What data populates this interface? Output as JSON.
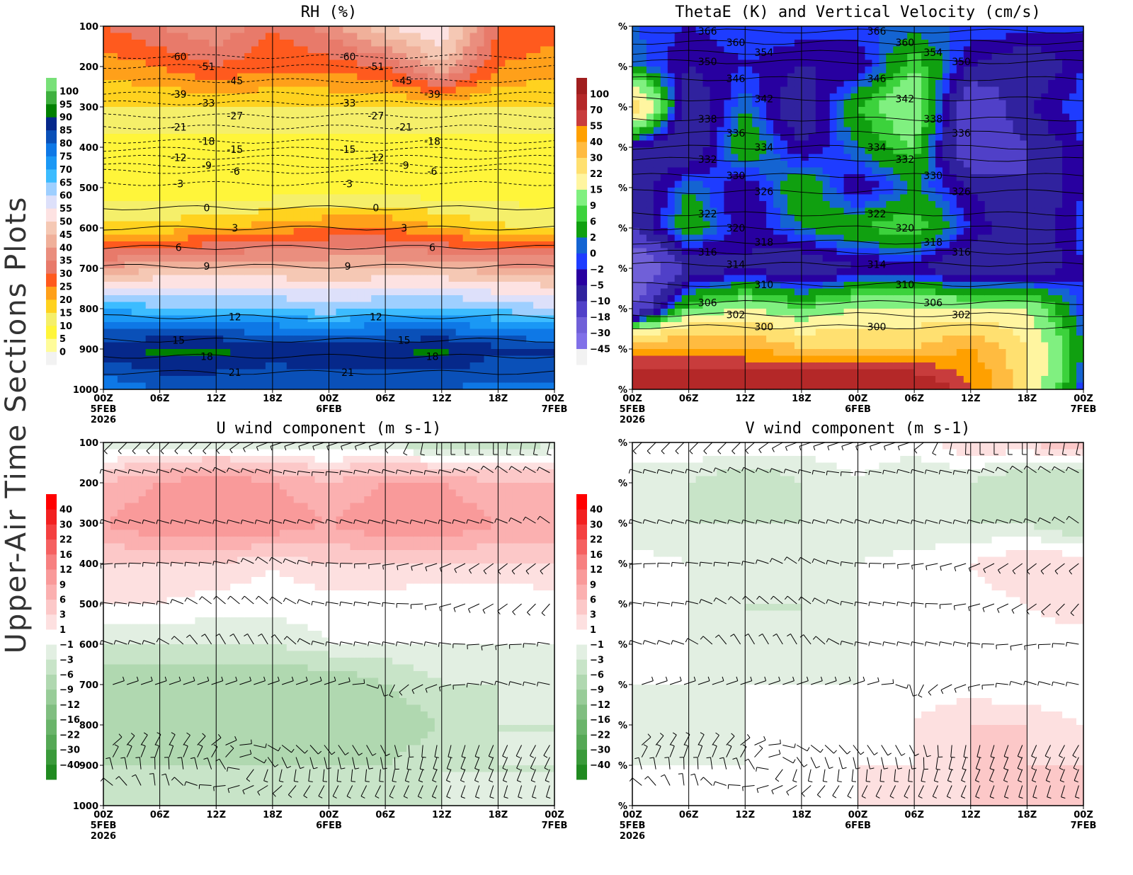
{
  "side_title": "Upper-Air Time Sections Plots",
  "time_axis": {
    "ticks_hours": [
      0,
      6,
      12,
      18,
      24,
      30,
      36,
      42,
      48
    ],
    "labels": [
      "00Z",
      "06Z",
      "12Z",
      "18Z",
      "00Z",
      "06Z",
      "12Z",
      "18Z",
      "00Z"
    ],
    "date_labels": [
      {
        "hour": 0,
        "text": "5FEB"
      },
      {
        "hour": 24,
        "text": "6FEB"
      },
      {
        "hour": 48,
        "text": "7FEB"
      }
    ],
    "year_label": "2026"
  },
  "chart_data": [
    {
      "id": "rh",
      "type": "heatmap",
      "title": "RH (%)",
      "y_axis": {
        "type": "pressure",
        "range": [
          100,
          1000
        ],
        "inverted": true,
        "ticks": [
          "100",
          "200",
          "300",
          "400",
          "500",
          "600",
          "700",
          "800",
          "900",
          "1000"
        ]
      },
      "x_range_hours": [
        0,
        48
      ],
      "grid_times_hours": [
        0,
        6,
        12,
        18,
        24,
        30,
        36,
        42,
        48
      ],
      "grid_pressures": [
        100,
        200,
        300,
        400,
        500,
        600,
        700,
        800,
        900,
        1000
      ],
      "values": [
        [
          30,
          35,
          40,
          30,
          38,
          50,
          55,
          30,
          28
        ],
        [
          22,
          25,
          30,
          26,
          27,
          30,
          45,
          25,
          22
        ],
        [
          15,
          15,
          15,
          15,
          15,
          15,
          15,
          15,
          15
        ],
        [
          8,
          8,
          8,
          8,
          8,
          8,
          8,
          8,
          8
        ],
        [
          6,
          6,
          6,
          6,
          6,
          6,
          6,
          6,
          6
        ],
        [
          16,
          17,
          20,
          22,
          25,
          25,
          20,
          16,
          15
        ],
        [
          40,
          45,
          45,
          45,
          45,
          45,
          45,
          42,
          42
        ],
        [
          70,
          66,
          66,
          66,
          62,
          66,
          66,
          64,
          60
        ],
        [
          88,
          92,
          92,
          88,
          90,
          90,
          92,
          86,
          86
        ],
        [
          76,
          80,
          80,
          80,
          80,
          80,
          80,
          78,
          78
        ]
      ],
      "colorbar": {
        "levels": [
          0,
          5,
          10,
          15,
          20,
          25,
          30,
          35,
          40,
          45,
          50,
          55,
          60,
          65,
          70,
          75,
          80,
          85,
          90,
          95,
          100
        ],
        "colors": [
          "#f2f2f2",
          "#fffc9a",
          "#fff53a",
          "#f5ef6a",
          "#ffd21f",
          "#ffa01a",
          "#ff5a1e",
          "#e87a6a",
          "#ea8e7e",
          "#f0b09a",
          "#f5c8b4",
          "#fde2e2",
          "#dde0fa",
          "#9ecfff",
          "#3cbcff",
          "#1a98f5",
          "#0e78e6",
          "#0a50b8",
          "#06288a",
          "#008000",
          "#3eb03e",
          "#78e078"
        ]
      },
      "contours": {
        "name": "temperature",
        "items": [
          {
            "value": "-60",
            "p": 175
          },
          {
            "value": "-51",
            "p": 200
          },
          {
            "value": "-45",
            "p": 235
          },
          {
            "value": "-39",
            "p": 268
          },
          {
            "value": "-33",
            "p": 290
          },
          {
            "value": "-27",
            "p": 322
          },
          {
            "value": "-21",
            "p": 350
          },
          {
            "value": "-18",
            "p": 385
          },
          {
            "value": "-15",
            "p": 405
          },
          {
            "value": "-12",
            "p": 425
          },
          {
            "value": "-9",
            "p": 445
          },
          {
            "value": "-6",
            "p": 460
          },
          {
            "value": "-3",
            "p": 490
          },
          {
            "value": "0",
            "p": 550
          },
          {
            "value": "3",
            "p": 600
          },
          {
            "value": "6",
            "p": 648
          },
          {
            "value": "9",
            "p": 695
          },
          {
            "value": "12",
            "p": 820
          },
          {
            "value": "15",
            "p": 878
          },
          {
            "value": "18",
            "p": 918
          },
          {
            "value": "21",
            "p": 958
          }
        ]
      }
    },
    {
      "id": "thetae",
      "type": "heatmap",
      "title": "ThetaE (K) and Vertical Velocity (cm/s)",
      "y_axis": {
        "type": "pressure",
        "range": [
          100,
          1000
        ],
        "inverted": true,
        "ticks": [
          "%",
          "%",
          "%",
          "%",
          "%",
          "%",
          "%",
          "%",
          "%",
          "%"
        ]
      },
      "x_range_hours": [
        0,
        48
      ],
      "grid_times_hours": [
        0,
        6,
        12,
        18,
        24,
        30,
        36,
        42,
        48
      ],
      "grid_pressures": [
        100,
        200,
        300,
        400,
        500,
        600,
        700,
        800,
        900,
        1000
      ],
      "values": [
        [
          0,
          -2,
          0,
          0,
          0,
          0,
          0,
          0,
          -2
        ],
        [
          2,
          -5,
          -2,
          -5,
          -5,
          9,
          -5,
          -10,
          -2
        ],
        [
          30,
          -10,
          2,
          -10,
          6,
          15,
          -18,
          -5,
          0
        ],
        [
          -5,
          -10,
          6,
          -5,
          2,
          9,
          -18,
          -10,
          -2
        ],
        [
          -10,
          2,
          -5,
          6,
          -5,
          2,
          -5,
          -10,
          -2
        ],
        [
          -10,
          6,
          -5,
          2,
          6,
          9,
          -2,
          -10,
          0
        ],
        [
          -30,
          -10,
          -5,
          -10,
          -5,
          -5,
          -10,
          -10,
          -2
        ],
        [
          -18,
          9,
          15,
          9,
          15,
          15,
          15,
          15,
          -2
        ],
        [
          40,
          40,
          40,
          30,
          30,
          30,
          40,
          22,
          2
        ],
        [
          100,
          100,
          100,
          100,
          100,
          100,
          55,
          22,
          -2
        ]
      ],
      "colorbar": {
        "levels": [
          -45,
          -30,
          -18,
          -10,
          -5,
          -2,
          0,
          2,
          6,
          9,
          15,
          22,
          30,
          40,
          55,
          70,
          100
        ],
        "colors": [
          "#f2f2f2",
          "#8070e8",
          "#7060d8",
          "#5040c8",
          "#30229e",
          "#2800a0",
          "#1e3cff",
          "#1464d2",
          "#10a010",
          "#3cd23c",
          "#80f080",
          "#fff5a0",
          "#ffe070",
          "#ffbb40",
          "#ffa000",
          "#c83c3c",
          "#b42828",
          "#a01e1e"
        ]
      },
      "contours": {
        "name": "thetae",
        "items": [
          {
            "value": "366",
            "p": 112
          },
          {
            "value": "360",
            "p": 140
          },
          {
            "value": "354",
            "p": 165
          },
          {
            "value": "350",
            "p": 188
          },
          {
            "value": "346",
            "p": 230
          },
          {
            "value": "342",
            "p": 280
          },
          {
            "value": "338",
            "p": 330
          },
          {
            "value": "336",
            "p": 365
          },
          {
            "value": "334",
            "p": 400
          },
          {
            "value": "332",
            "p": 430
          },
          {
            "value": "330",
            "p": 470
          },
          {
            "value": "326",
            "p": 510
          },
          {
            "value": "322",
            "p": 565
          },
          {
            "value": "320",
            "p": 600
          },
          {
            "value": "318",
            "p": 635
          },
          {
            "value": "316",
            "p": 660
          },
          {
            "value": "314",
            "p": 690
          },
          {
            "value": "310",
            "p": 740
          },
          {
            "value": "306",
            "p": 785
          },
          {
            "value": "302",
            "p": 815
          },
          {
            "value": "300",
            "p": 845
          }
        ]
      }
    },
    {
      "id": "u",
      "type": "heatmap",
      "title": "U wind component (m s-1)",
      "y_axis": {
        "type": "pressure",
        "range": [
          100,
          1000
        ],
        "inverted": true,
        "ticks": [
          "100",
          "200",
          "300",
          "400",
          "500",
          "600",
          "700",
          "800",
          "900",
          "1000"
        ]
      },
      "x_range_hours": [
        0,
        48
      ],
      "grid_times_hours": [
        0,
        6,
        12,
        18,
        24,
        30,
        36,
        42,
        48
      ],
      "grid_pressures": [
        100,
        200,
        300,
        400,
        500,
        600,
        700,
        800,
        900,
        1000
      ],
      "values": [
        [
          -3,
          -3,
          -3,
          -3,
          -3,
          -3,
          -6,
          -6,
          -3
        ],
        [
          6,
          9,
          12,
          9,
          6,
          9,
          9,
          6,
          6
        ],
        [
          9,
          12,
          12,
          12,
          9,
          12,
          12,
          9,
          9
        ],
        [
          3,
          3,
          3,
          1,
          3,
          3,
          3,
          3,
          3
        ],
        [
          1,
          1,
          0,
          0,
          0,
          0,
          -1,
          -1,
          0
        ],
        [
          -3,
          -3,
          -3,
          -3,
          -1,
          -1,
          -1,
          -1,
          -1
        ],
        [
          -9,
          -9,
          -9,
          -9,
          -9,
          -6,
          -3,
          -3,
          -1
        ],
        [
          -9,
          -9,
          -9,
          -9,
          -9,
          -9,
          -6,
          -3,
          -3
        ],
        [
          -6,
          -6,
          -6,
          -6,
          -6,
          -6,
          -3,
          -3,
          -3
        ],
        [
          -3,
          -6,
          -3,
          -3,
          -3,
          -3,
          -3,
          -3,
          -3
        ]
      ],
      "colorbar": {
        "levels": [
          -40,
          -30,
          -22,
          -16,
          -12,
          -9,
          -6,
          -3,
          -1,
          1,
          3,
          6,
          9,
          12,
          16,
          22,
          30,
          40
        ],
        "colors": [
          "#208a20",
          "#3a9a3a",
          "#55a855",
          "#6ab46a",
          "#80be80",
          "#98cc98",
          "#b0d8b0",
          "#c8e4c8",
          "#e2efe2",
          "#ffffff",
          "#fde0e0",
          "#fcc8c8",
          "#fbb0b0",
          "#f99a9a",
          "#f78080",
          "#f56060",
          "#f44040",
          "#f22020",
          "#ff0000"
        ]
      }
    },
    {
      "id": "v",
      "type": "heatmap",
      "title": "V wind component (m s-1)",
      "y_axis": {
        "type": "pressure",
        "range": [
          100,
          1000
        ],
        "inverted": true,
        "ticks": [
          "%",
          "%",
          "%",
          "%",
          "%",
          "%",
          "%",
          "%",
          "%",
          "%"
        ]
      },
      "x_range_hours": [
        0,
        48
      ],
      "grid_times_hours": [
        0,
        6,
        12,
        18,
        24,
        30,
        36,
        42,
        48
      ],
      "grid_pressures": [
        100,
        200,
        300,
        400,
        500,
        600,
        700,
        800,
        900,
        1000
      ],
      "values": [
        [
          1,
          1,
          1,
          0,
          0,
          0,
          3,
          3,
          6
        ],
        [
          -3,
          -3,
          -6,
          -3,
          -1,
          -3,
          -3,
          -6,
          -6
        ],
        [
          -3,
          -3,
          -3,
          -3,
          -3,
          -3,
          -3,
          -3,
          -6
        ],
        [
          0,
          -1,
          -1,
          -3,
          -1,
          0,
          1,
          3,
          3
        ],
        [
          -1,
          -1,
          -3,
          -3,
          -1,
          -1,
          0,
          1,
          3
        ],
        [
          -1,
          -1,
          -3,
          -3,
          -1,
          -1,
          -1,
          0,
          -1
        ],
        [
          -1,
          -1,
          -1,
          -1,
          -1,
          0,
          0,
          -1,
          -1
        ],
        [
          -1,
          -3,
          -1,
          0,
          0,
          1,
          3,
          3,
          1
        ],
        [
          -1,
          -1,
          -1,
          0,
          1,
          1,
          3,
          3,
          3
        ],
        [
          -1,
          -1,
          0,
          0,
          1,
          1,
          3,
          6,
          6
        ]
      ],
      "colorbar": {
        "levels": [
          -40,
          -30,
          -22,
          -16,
          -12,
          -9,
          -6,
          -3,
          -1,
          1,
          3,
          6,
          9,
          12,
          16,
          22,
          30,
          40
        ],
        "colors": [
          "#208a20",
          "#3a9a3a",
          "#55a855",
          "#6ab46a",
          "#80be80",
          "#98cc98",
          "#b0d8b0",
          "#c8e4c8",
          "#e2efe2",
          "#ffffff",
          "#fde0e0",
          "#fcc8c8",
          "#fbb0b0",
          "#f99a9a",
          "#f78080",
          "#f56060",
          "#f44040",
          "#f22020",
          "#ff0000"
        ]
      }
    }
  ],
  "wind_barb_levels": [
    100,
    175,
    300,
    400,
    500,
    600,
    700,
    850,
    880,
    910,
    950
  ]
}
